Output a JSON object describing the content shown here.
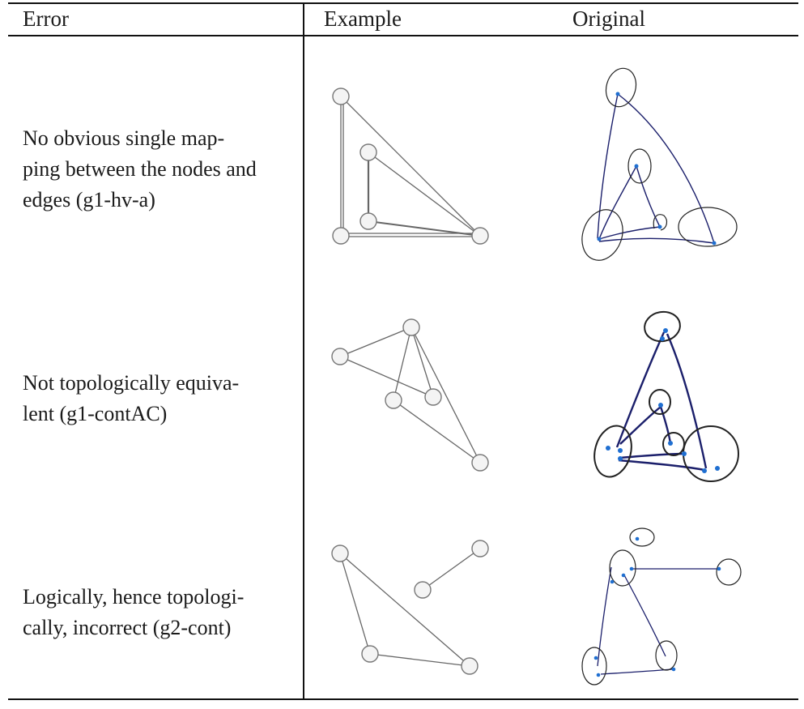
{
  "table": {
    "headers": {
      "error": "Error",
      "example": "Example",
      "original": "Original"
    },
    "rows": [
      {
        "error_lines": [
          "No obvious single map-",
          "ping between the nodes and",
          "edges (g1-hv-a)"
        ],
        "example_figure": "graph-drawing-g1-hv-a",
        "original_figure": "sketch-g1-hv-a"
      },
      {
        "error_lines": [
          "Not topologically equiva-",
          "lent (g1-contAC)"
        ],
        "example_figure": "graph-drawing-g1-contAC",
        "original_figure": "sketch-g1-contAC"
      },
      {
        "error_lines": [
          "Logically, hence topologi-",
          "cally, incorrect (g2-cont)"
        ],
        "example_figure": "graph-drawing-g2-cont",
        "original_figure": "sketch-g2-cont"
      }
    ]
  },
  "colors": {
    "rule": "#111111",
    "node_stroke": "#777777",
    "node_fill": "#f4f4f4",
    "edge": "#666666",
    "sketch_edge": "#1b1f6b",
    "sketch_ellipse": "#222222",
    "sketch_dot": "#1f6fd1"
  }
}
